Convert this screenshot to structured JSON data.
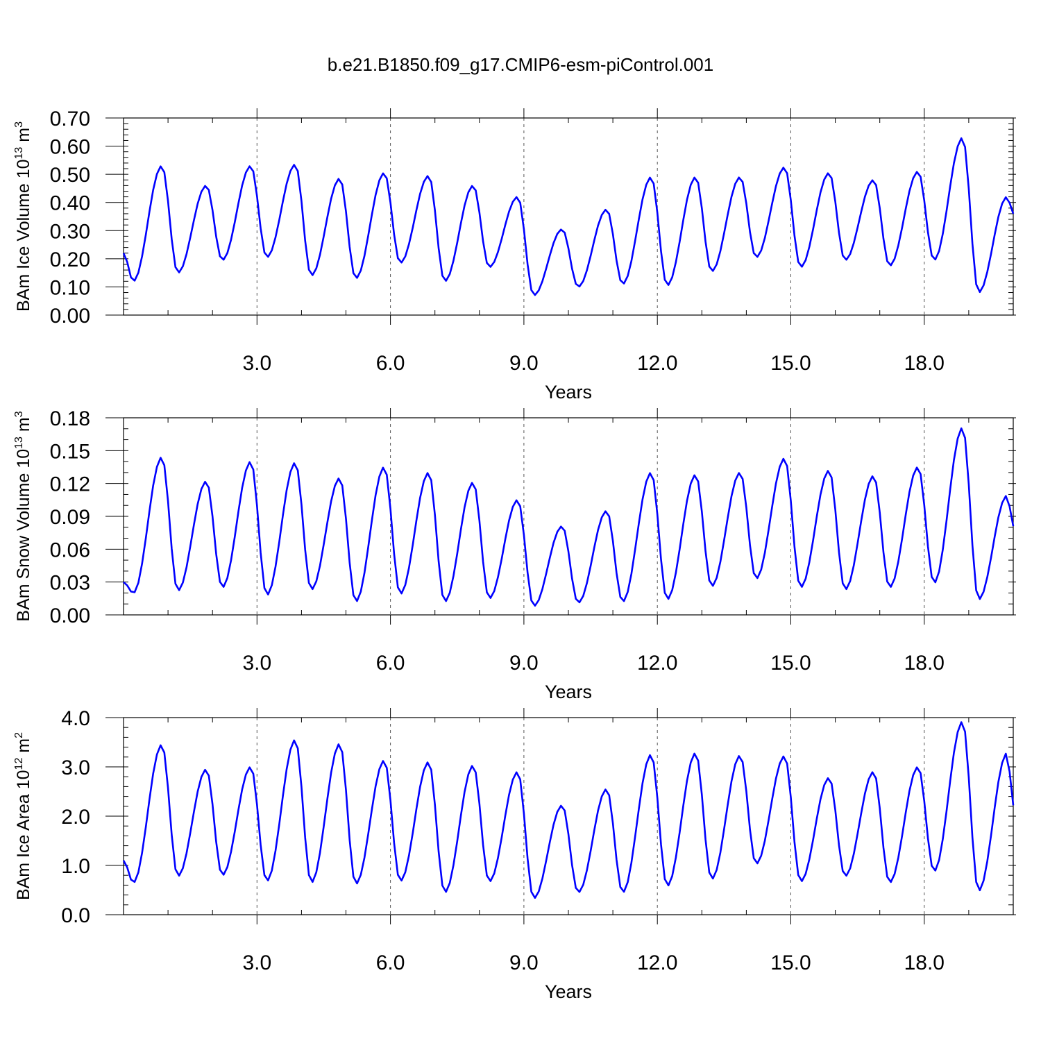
{
  "title": "b.e21.B1850.f09_g17.CMIP6-esm-piControl.001",
  "colors": {
    "series": "#0000ff",
    "axis": "#000000",
    "grid": "#555555"
  },
  "chart_data": [
    {
      "type": "line",
      "title": "",
      "xlabel": "Years",
      "ylabel_main": "BAm Ice Volume 10",
      "ylabel_exp": "13",
      "ylabel_unit": " m",
      "ylabel_unit_exp": "3",
      "xlim": [
        0.0,
        20.0
      ],
      "ylim": [
        0.0,
        0.7
      ],
      "xticks": [
        3.0,
        6.0,
        9.0,
        12.0,
        15.0,
        18.0
      ],
      "xtick_labels": [
        "3.0",
        "6.0",
        "9.0",
        "12.0",
        "15.0",
        "18.0"
      ],
      "yticks": [
        0.0,
        0.1,
        0.2,
        0.3,
        0.4,
        0.5,
        0.6,
        0.7
      ],
      "ytick_labels": [
        "0.00",
        "0.10",
        "0.20",
        "0.30",
        "0.40",
        "0.50",
        "0.60",
        "0.70"
      ],
      "yminor_step": 0.02,
      "grid": "vertical dashed at major x ticks",
      "series": [
        {
          "peaks": [
            0.53,
            0.46,
            0.53,
            0.535,
            0.485,
            0.505,
            0.495,
            0.46,
            0.42,
            0.305,
            0.375,
            0.49,
            0.49,
            0.49,
            0.525,
            0.505,
            0.48,
            0.51,
            0.63,
            0.42
          ],
          "troughs": [
            0.12,
            0.15,
            0.195,
            0.205,
            0.14,
            0.13,
            0.185,
            0.12,
            0.17,
            0.07,
            0.1,
            0.11,
            0.105,
            0.155,
            0.205,
            0.17,
            0.195,
            0.175,
            0.195,
            0.08
          ],
          "start": 0.22,
          "end": 0.36
        }
      ]
    },
    {
      "type": "line",
      "title": "",
      "xlabel": "Years",
      "ylabel_main": "BAm Snow Volume 10",
      "ylabel_exp": "13",
      "ylabel_unit": " m",
      "ylabel_unit_exp": "3",
      "xlim": [
        0.0,
        20.0
      ],
      "ylim": [
        0.0,
        0.18
      ],
      "xticks": [
        3.0,
        6.0,
        9.0,
        12.0,
        15.0,
        18.0
      ],
      "xtick_labels": [
        "3.0",
        "6.0",
        "9.0",
        "12.0",
        "15.0",
        "18.0"
      ],
      "yticks": [
        0.0,
        0.03,
        0.06,
        0.09,
        0.12,
        0.15,
        0.18
      ],
      "ytick_labels": [
        "0.00",
        "0.03",
        "0.06",
        "0.09",
        "0.12",
        "0.15",
        "0.18"
      ],
      "yminor_step": 0.01,
      "grid": "vertical dashed at major x ticks",
      "series": [
        {
          "peaks": [
            0.144,
            0.122,
            0.14,
            0.139,
            0.125,
            0.135,
            0.13,
            0.121,
            0.105,
            0.081,
            0.095,
            0.13,
            0.128,
            0.13,
            0.143,
            0.132,
            0.127,
            0.135,
            0.171,
            0.109
          ],
          "troughs": [
            0.02,
            0.022,
            0.025,
            0.018,
            0.023,
            0.012,
            0.019,
            0.012,
            0.015,
            0.008,
            0.011,
            0.012,
            0.014,
            0.026,
            0.033,
            0.025,
            0.023,
            0.025,
            0.029,
            0.014
          ],
          "start": 0.03,
          "end": 0.081
        }
      ]
    },
    {
      "type": "line",
      "title": "",
      "xlabel": "Years",
      "ylabel_main": "BAm Ice Area 10",
      "ylabel_exp": "12",
      "ylabel_unit": " m",
      "ylabel_unit_exp": "2",
      "xlim": [
        0.0,
        20.0
      ],
      "ylim": [
        0.0,
        4.0
      ],
      "xticks": [
        3.0,
        6.0,
        9.0,
        12.0,
        15.0,
        18.0
      ],
      "xtick_labels": [
        "3.0",
        "6.0",
        "9.0",
        "12.0",
        "15.0",
        "18.0"
      ],
      "yticks": [
        0.0,
        1.0,
        2.0,
        3.0,
        4.0
      ],
      "ytick_labels": [
        "0.0",
        "1.0",
        "2.0",
        "3.0",
        "4.0"
      ],
      "yminor_step": 0.2,
      "grid": "vertical dashed at major x ticks",
      "series": [
        {
          "peaks": [
            3.45,
            2.95,
            3.0,
            3.55,
            3.47,
            3.13,
            3.1,
            3.03,
            2.9,
            2.22,
            2.55,
            3.25,
            3.28,
            3.23,
            3.22,
            2.78,
            2.9,
            3.0,
            3.92,
            3.28
          ],
          "troughs": [
            0.65,
            0.78,
            0.8,
            0.68,
            0.65,
            0.62,
            0.68,
            0.45,
            0.67,
            0.33,
            0.45,
            0.45,
            0.58,
            0.72,
            1.03,
            0.67,
            0.78,
            0.65,
            0.88,
            0.48
          ],
          "start": 1.1,
          "end": 2.22
        }
      ]
    }
  ]
}
